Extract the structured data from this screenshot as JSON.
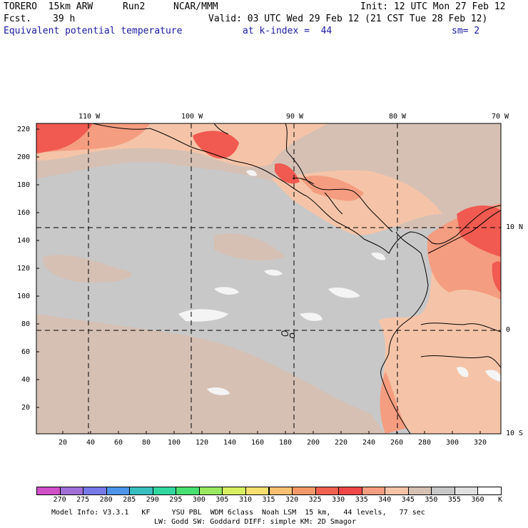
{
  "header": {
    "model": "TORERO  15km ARW",
    "run": "Run2",
    "center": "NCAR/MMM",
    "init": "Init: 12 UTC Mon 27 Feb 12",
    "fcst_label": "Fcst.",
    "fcst_value": "39 h",
    "valid": "Valid: 03 UTC Wed 29 Feb 12 (21 CST Tue 28 Feb 12)",
    "field": "Equivalent potential temperature",
    "level": "at k-index =  44",
    "smoothing": "sm= 2"
  },
  "map": {
    "top_lon_labels": [
      "110 W",
      "100 W",
      "90 W",
      "80 W",
      "70 W"
    ],
    "right_lat_labels": [
      "10 N",
      "0",
      "10 S"
    ],
    "y_ticks": [
      "220",
      "200",
      "180",
      "160",
      "140",
      "120",
      "100",
      "80",
      "60",
      "40",
      "20"
    ],
    "x_ticks": [
      "20",
      "40",
      "60",
      "80",
      "100",
      "120",
      "140",
      "160",
      "180",
      "200",
      "220",
      "240",
      "260",
      "280",
      "300",
      "320"
    ],
    "colors": {
      "cold_gray": "#c8c8c8",
      "tan": "#d6c0b4",
      "peach": "#f5c4a8",
      "salmon": "#f59d80",
      "red": "#f05a50",
      "white": "#f4f4f4"
    }
  },
  "colorbar": {
    "labels": [
      "270",
      "275",
      "280",
      "285",
      "290",
      "295",
      "300",
      "305",
      "310",
      "315",
      "320",
      "325",
      "330",
      "335",
      "340",
      "345",
      "350",
      "355",
      "360"
    ],
    "unit": "K",
    "colors": [
      "#d050c8",
      "#a070d8",
      "#7878e8",
      "#4e94ea",
      "#38c0c0",
      "#30d8a0",
      "#48e070",
      "#98e860",
      "#d8f060",
      "#f8e070",
      "#f8c070",
      "#f49868",
      "#f26050",
      "#f04848",
      "#f59d80",
      "#f5c4a8",
      "#d6c0b4",
      "#c8c8c8",
      "#e0e0e0",
      "#ffffff"
    ]
  },
  "footer": {
    "line1": "Model Info: V3.3.1   KF     YSU PBL  WDM 6class  Noah LSM  15 km,   44 levels,   77 sec",
    "line2": "LW: Godd SW: Goddard DIFF: simple KM: 2D Smagor"
  }
}
